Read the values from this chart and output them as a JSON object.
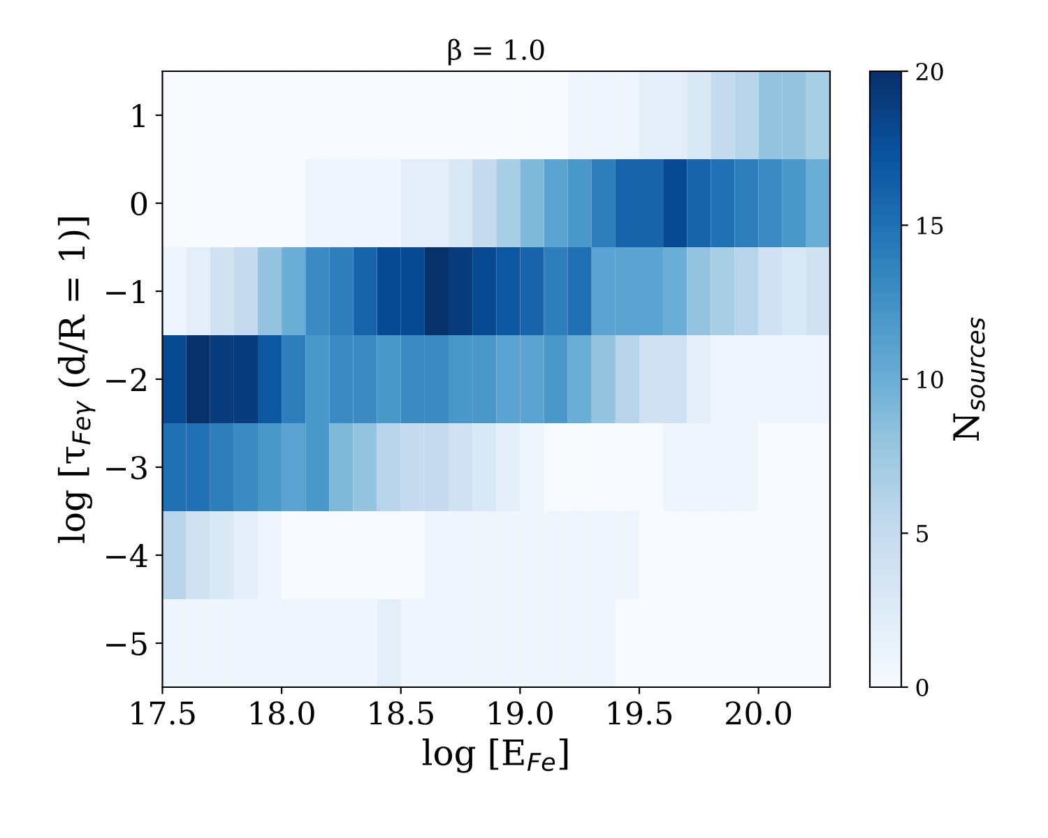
{
  "chart_data": {
    "type": "heatmap",
    "title": "β = 1.0",
    "xlabel": "log [E$_{Fe}$]",
    "ylabel": "log [τ$_{Feγ}$ (d/R = 1)]",
    "clabel": "N$_{sources}$",
    "xlim": [
      17.5,
      20.3
    ],
    "ylim": [
      -5.5,
      1.5
    ],
    "xticks": [
      17.5,
      {
        "value": 18,
        "label": "18.0"
      },
      18.5,
      {
        "value": 19,
        "label": "19.0"
      },
      19.5,
      {
        "value": 20,
        "label": "20.0"
      }
    ],
    "yticks": [
      {
        "value": -5,
        "label": "−5"
      },
      {
        "value": -4,
        "label": "−4"
      },
      {
        "value": -3,
        "label": "−3"
      },
      {
        "value": -2,
        "label": "−2"
      },
      {
        "value": -1,
        "label": "−1"
      },
      0,
      1
    ],
    "clim": [
      0,
      20
    ],
    "cticks": [
      0,
      5,
      10,
      15,
      20
    ],
    "cells": [
      [
        0,
        0,
        0,
        0,
        0,
        0,
        0,
        0,
        0,
        0,
        0,
        0,
        0,
        0,
        0,
        0,
        0,
        1,
        1,
        1,
        2,
        2,
        3,
        5,
        6,
        8,
        8,
        7
      ],
      [
        0,
        0,
        0,
        0,
        0,
        0,
        1,
        1,
        1,
        1,
        2,
        2,
        3,
        5,
        7,
        9,
        11,
        12,
        14,
        16,
        16,
        18,
        16,
        15,
        14,
        13,
        12,
        10
      ],
      [
        1,
        2,
        4,
        5,
        8,
        10,
        13,
        14,
        16,
        18,
        18,
        20,
        19,
        18,
        17,
        16,
        14,
        15,
        11,
        11,
        11,
        10,
        8,
        7,
        6,
        4,
        3,
        4
      ],
      [
        18,
        20,
        19,
        19,
        17,
        14,
        12,
        13,
        13,
        12,
        13,
        13,
        12,
        12,
        11,
        11,
        12,
        10,
        8,
        6,
        4,
        4,
        2,
        1,
        1,
        1,
        1,
        1
      ],
      [
        15,
        15,
        14,
        13,
        12,
        11,
        12,
        9,
        8,
        6,
        5,
        5,
        4,
        3,
        2,
        1,
        0,
        0,
        0,
        0,
        0,
        1,
        1,
        1,
        1,
        0,
        0,
        0
      ],
      [
        6,
        4,
        3,
        2,
        1,
        0,
        0,
        0,
        0,
        0,
        0,
        1,
        1,
        1,
        1,
        1,
        1,
        1,
        1,
        1,
        0,
        0,
        0,
        0,
        0,
        0,
        0,
        0
      ],
      [
        1,
        1,
        1,
        1,
        1,
        1,
        1,
        1,
        1,
        2,
        1,
        1,
        1,
        1,
        1,
        1,
        1,
        1,
        1,
        0,
        0,
        0,
        0,
        0,
        0,
        0,
        0,
        0
      ]
    ]
  }
}
